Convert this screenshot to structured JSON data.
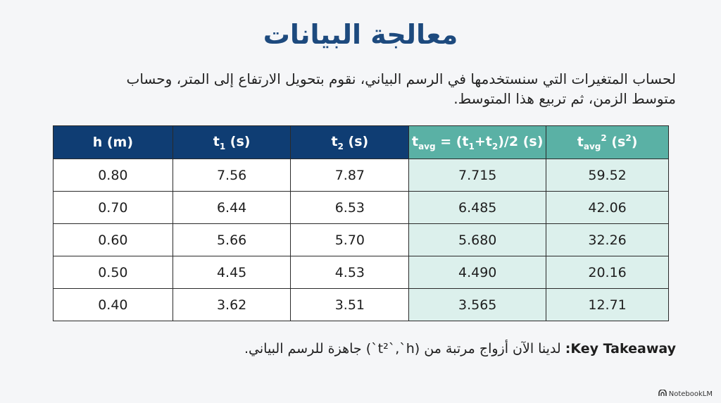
{
  "title": "معالجة البيانات",
  "intro": "لحساب المتغيرات التي سنستخدمها في الرسم البياني، نقوم بتحويل الارتفاع إلى المتر، وحساب متوسط الزمن، ثم تربيع هذا المتوسط.",
  "table": {
    "headers": {
      "h": "h (m)",
      "t1_main": "t",
      "t1_sub": "1",
      "t1_unit": " (s)",
      "t2_main": "t",
      "t2_sub": "2",
      "t2_unit": " (s)",
      "tavg_main": "t",
      "tavg_sub": "avg",
      "tavg_mid1": " = (t",
      "tavg_sub1": "1",
      "tavg_mid2": "+t",
      "tavg_sub2": "2",
      "tavg_end": ")/2 (s)",
      "tsq_main": "t",
      "tsq_sub": "avg",
      "tsq_sup": "2",
      "tsq_mid": " (s",
      "tsq_sup2": "2",
      "tsq_end": ")"
    },
    "rows": [
      {
        "h": "0.80",
        "t1": "7.56",
        "t2": "7.87",
        "tavg": "7.715",
        "tsq": "59.52"
      },
      {
        "h": "0.70",
        "t1": "6.44",
        "t2": "6.53",
        "tavg": "6.485",
        "tsq": "42.06"
      },
      {
        "h": "0.60",
        "t1": "5.66",
        "t2": "5.70",
        "tavg": "5.680",
        "tsq": "32.26"
      },
      {
        "h": "0.50",
        "t1": "4.45",
        "t2": "4.53",
        "tavg": "4.490",
        "tsq": "20.16"
      },
      {
        "h": "0.40",
        "t1": "3.62",
        "t2": "3.51",
        "tavg": "3.565",
        "tsq": "12.71"
      }
    ]
  },
  "takeaway": {
    "label": "Key Takeaway:",
    "text": " لدينا الآن أزواج مرتبة من (t²`,`h`) جاهزة للرسم البياني."
  },
  "brand": {
    "name": "NotebookLM",
    "icon": "notebooklm-logo-icon"
  },
  "colors": {
    "title": "#1d4a7e",
    "header_navy": "#0f3d73",
    "header_teal": "#5ab1a5",
    "cell_teal": "#dcf0ec"
  }
}
